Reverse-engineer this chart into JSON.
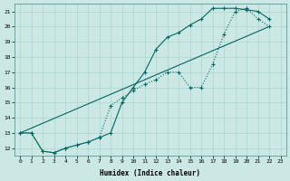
{
  "xlabel": "Humidex (Indice chaleur)",
  "bg_color": "#cce8e4",
  "grid_color": "#aad4cc",
  "line_color": "#006666",
  "xlim": [
    -0.5,
    23.5
  ],
  "ylim": [
    11.5,
    21.5
  ],
  "xticks": [
    0,
    1,
    2,
    3,
    4,
    5,
    6,
    7,
    8,
    9,
    10,
    11,
    12,
    13,
    14,
    15,
    16,
    17,
    18,
    19,
    20,
    21,
    22,
    23
  ],
  "yticks": [
    12,
    13,
    14,
    15,
    16,
    17,
    18,
    19,
    20,
    21
  ],
  "line1_x": [
    0,
    1,
    2,
    3,
    4,
    5,
    6,
    7,
    8,
    9,
    10,
    11,
    12,
    13,
    14,
    15,
    16,
    17,
    18,
    19,
    20,
    21,
    22
  ],
  "line1_y": [
    13.0,
    13.0,
    11.8,
    11.7,
    12.0,
    12.2,
    12.4,
    12.7,
    13.0,
    15.0,
    16.0,
    17.0,
    18.5,
    19.3,
    19.6,
    20.1,
    20.5,
    21.2,
    21.2,
    21.2,
    21.1,
    21.0,
    20.5
  ],
  "line2_x": [
    0,
    1,
    2,
    3,
    4,
    5,
    6,
    7,
    8,
    9,
    10,
    11,
    12,
    13,
    14,
    15,
    16,
    17,
    18,
    19,
    20,
    21,
    22
  ],
  "line2_y": [
    13.0,
    13.0,
    11.8,
    11.7,
    12.0,
    12.2,
    12.4,
    12.7,
    14.8,
    15.3,
    15.8,
    16.2,
    16.5,
    17.0,
    17.0,
    16.0,
    16.0,
    17.5,
    19.5,
    21.0,
    21.2,
    20.5,
    20.0
  ],
  "line3_x": [
    0,
    22
  ],
  "line3_y": [
    13.0,
    20.0
  ]
}
